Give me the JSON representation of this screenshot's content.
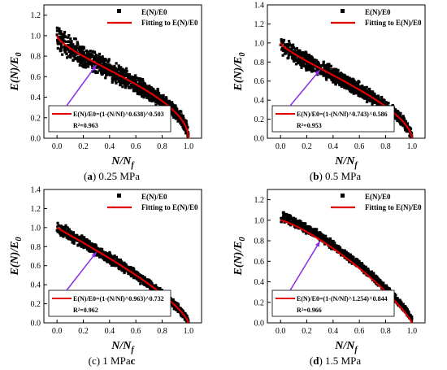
{
  "figure": {
    "panels": [
      {
        "letter": "a",
        "caption_prefix": "(",
        "caption_suffix": ") 0.25 MPa"
      },
      {
        "letter": "b",
        "caption_prefix": "(",
        "caption_suffix": ") 0.5 MPa"
      },
      {
        "letter": "c",
        "caption_prefix": "(c) 1 MPa",
        "caption_suffix": ""
      },
      {
        "letter": "d",
        "caption_prefix": "(",
        "caption_suffix": ") 1.5 MPa"
      }
    ]
  },
  "chart_data": [
    {
      "type": "scatter",
      "xlabel": "N/N_f",
      "ylabel": "E(N)/E_0",
      "xlim": [
        -0.1,
        1.1
      ],
      "ylim": [
        0.0,
        1.3
      ],
      "xticks": [
        "0.0",
        "0.2",
        "0.4",
        "0.6",
        "0.8",
        "1.0"
      ],
      "yticks": [
        "0.0",
        "0.2",
        "0.4",
        "0.6",
        "0.8",
        "1.0",
        "1.2"
      ],
      "series": [
        {
          "name": "E(N)/E0",
          "kind": "scatter",
          "color": "#000000",
          "band": 0.12
        },
        {
          "name": "Fitting to E(N)/E0",
          "kind": "line",
          "color": "#e00000"
        }
      ],
      "fit": {
        "a": 0.638,
        "b": 0.503
      },
      "equation_label": "E(N)/E0=(1-(N/Nf)^0.638)^0.503",
      "r2_label": "R²=0.963"
    },
    {
      "type": "scatter",
      "xlabel": "N/N_f",
      "ylabel": "E(N)/E_0",
      "xlim": [
        -0.1,
        1.1
      ],
      "ylim": [
        0.0,
        1.4
      ],
      "xticks": [
        "0.0",
        "0.2",
        "0.4",
        "0.6",
        "0.8",
        "1.0"
      ],
      "yticks": [
        "0.0",
        "0.2",
        "0.4",
        "0.6",
        "0.8",
        "1.0",
        "1.2",
        "1.4"
      ],
      "series": [
        {
          "name": "E(N)/E0",
          "kind": "scatter",
          "color": "#000000",
          "band": 0.1
        },
        {
          "name": "Fitting to E(N)/E0",
          "kind": "line",
          "color": "#e00000"
        }
      ],
      "fit": {
        "a": 0.743,
        "b": 0.586
      },
      "equation_label": "E(N)/E0=(1-(N/Nf)^0.743)^0.586",
      "r2_label": "R²=0.953"
    },
    {
      "type": "scatter",
      "xlabel": "N/N_f",
      "ylabel": "E(N)/E_0",
      "xlim": [
        -0.1,
        1.1
      ],
      "ylim": [
        0.0,
        1.4
      ],
      "xticks": [
        "0.0",
        "0.2",
        "0.4",
        "0.6",
        "0.8",
        "1.0"
      ],
      "yticks": [
        "0.0",
        "0.2",
        "0.4",
        "0.6",
        "0.8",
        "1.0",
        "1.2",
        "1.4"
      ],
      "series": [
        {
          "name": "E(N)/E0",
          "kind": "scatter",
          "color": "#000000",
          "band": 0.06
        },
        {
          "name": "Fitting to E(N)/E0",
          "kind": "line",
          "color": "#e00000"
        }
      ],
      "fit": {
        "a": 0.963,
        "b": 0.732
      },
      "equation_label": "E(N)/E0=(1-(N/Nf)^0.963)^0.732",
      "r2_label": "R²=0.962"
    },
    {
      "type": "scatter",
      "xlabel": "N/N_f",
      "ylabel": "E(N)/E_0",
      "xlim": [
        -0.1,
        1.1
      ],
      "ylim": [
        0.0,
        1.3
      ],
      "xticks": [
        "0.0",
        "0.2",
        "0.4",
        "0.6",
        "0.8",
        "1.0"
      ],
      "yticks": [
        "0.0",
        "0.2",
        "0.4",
        "0.6",
        "0.8",
        "1.0",
        "1.2"
      ],
      "series": [
        {
          "name": "E(N)/E0",
          "kind": "scatter",
          "color": "#000000",
          "band": 0.04
        },
        {
          "name": "Fitting to E(N)/E0",
          "kind": "line",
          "color": "#e00000"
        }
      ],
      "fit": {
        "a": 1.254,
        "b": 0.844
      },
      "equation_label": "E(N)/E0=(1-(N/Nf)^1.254)^0.844",
      "r2_label": "R²=0.966"
    }
  ]
}
